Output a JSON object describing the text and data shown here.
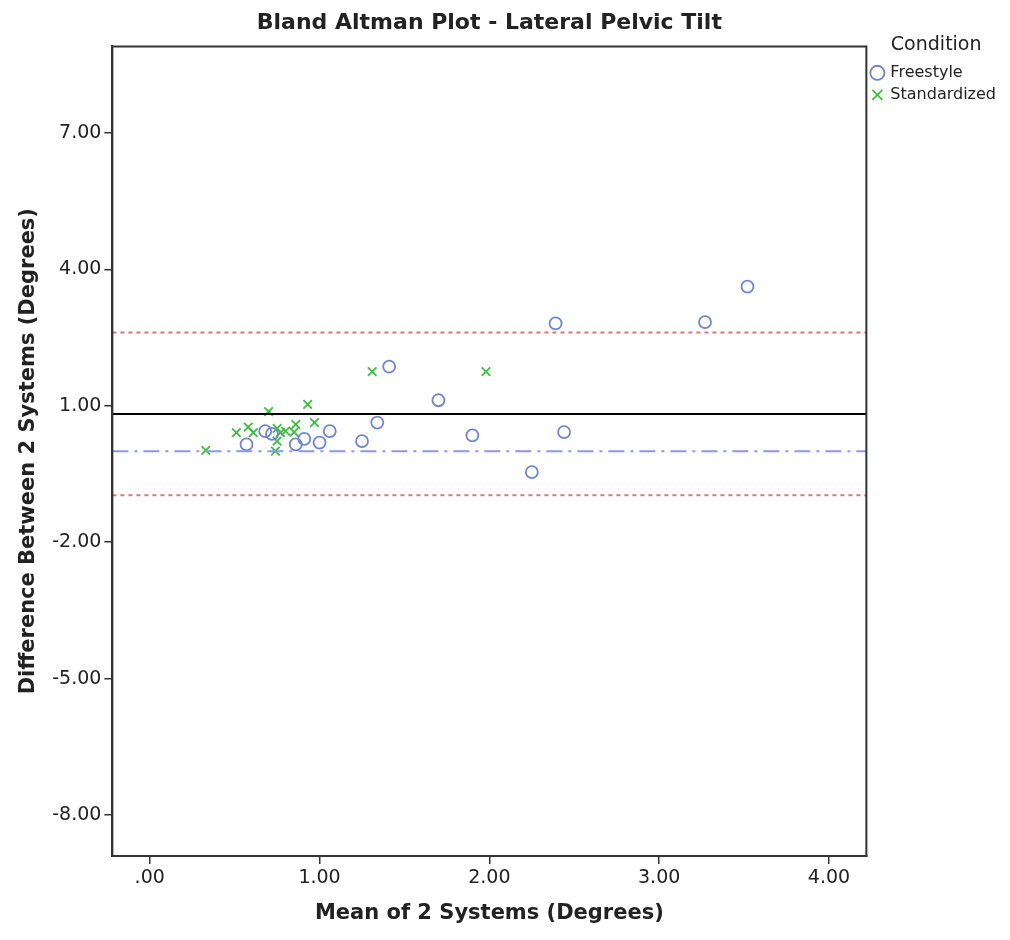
{
  "chart_data": {
    "type": "scatter",
    "title": "Bland Altman Plot - Lateral Pelvic Tilt",
    "xlabel": "Mean of 2 Systems (Degrees)",
    "ylabel": "Difference Between 2 Systems (Degrees)",
    "legend_title": "Condition",
    "legend": "top right",
    "grid": false,
    "xlim": [
      -0.22,
      4.22
    ],
    "xticks": [
      {
        "value": 0,
        "label": ".00"
      },
      {
        "value": 1,
        "label": "1.00"
      },
      {
        "value": 2,
        "label": "2.00"
      },
      {
        "value": 3,
        "label": "3.00"
      },
      {
        "value": 4,
        "label": "4.00"
      }
    ],
    "ylim": [
      -8.9,
      8.9
    ],
    "yticks": [
      {
        "value": -8,
        "label": "-8.00"
      },
      {
        "value": -5,
        "label": "-5.00"
      },
      {
        "value": -2,
        "label": "-2.00"
      },
      {
        "value": 1,
        "label": "1.00"
      },
      {
        "value": 4,
        "label": "4.00"
      },
      {
        "value": 7,
        "label": "7.00"
      }
    ],
    "series": [
      {
        "name": "Freestyle",
        "color": "#6f86cc",
        "marker": "circle",
        "x": [
          0.57,
          0.68,
          0.72,
          0.86,
          0.91,
          1.0,
          1.06,
          1.25,
          1.34,
          1.41,
          1.7,
          1.9,
          2.25,
          2.39,
          2.44,
          3.27,
          3.52
        ],
        "values": [
          0.15,
          0.44,
          0.38,
          0.15,
          0.27,
          0.19,
          0.44,
          0.22,
          0.63,
          1.86,
          1.12,
          0.35,
          -0.46,
          2.81,
          0.42,
          2.84,
          3.62
        ]
      },
      {
        "name": "Standardized",
        "color": "#3cbf3c",
        "marker": "cross",
        "x": [
          0.33,
          0.51,
          0.58,
          0.61,
          0.7,
          0.75,
          0.77,
          0.75,
          0.74,
          0.8,
          0.86,
          0.85,
          0.93,
          0.97,
          1.31,
          1.98
        ],
        "values": [
          0.02,
          0.41,
          0.53,
          0.41,
          0.87,
          0.5,
          0.41,
          0.22,
          0.0,
          0.44,
          0.59,
          0.42,
          1.03,
          0.63,
          1.75,
          1.75
        ]
      }
    ],
    "ref_lines": [
      {
        "axis": "y",
        "value": 0.82,
        "color": "#000000",
        "line_style": "solid"
      },
      {
        "axis": "y",
        "value": 0,
        "color": "#8c96f0",
        "line_style": "dashed"
      },
      {
        "axis": "y",
        "value": 2.61,
        "color": "#f07070",
        "line_style": "dotted"
      },
      {
        "axis": "y",
        "value": -0.97,
        "color": "#f07070",
        "line_style": "dotted"
      }
    ]
  }
}
